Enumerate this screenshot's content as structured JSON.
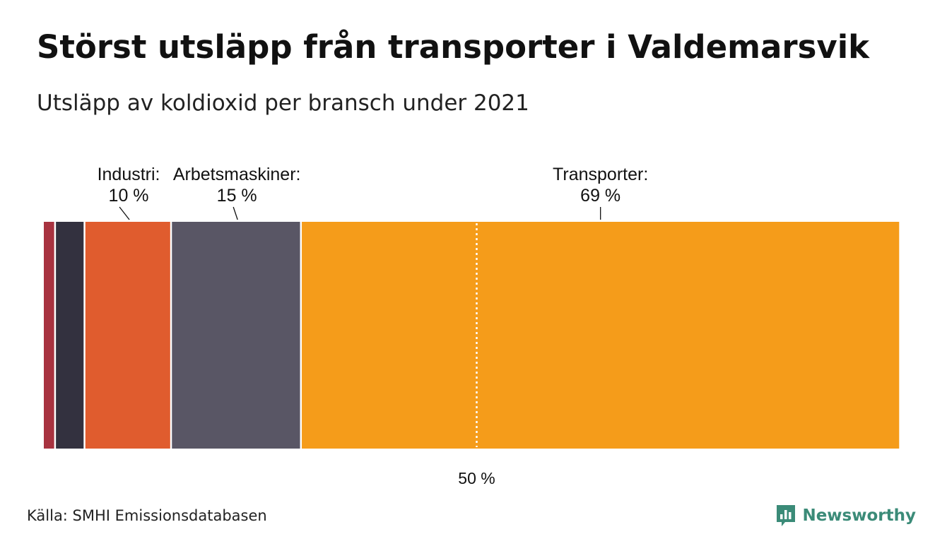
{
  "header": {
    "title": "Störst utsläpp från transporter i Valdemarsvik",
    "subtitle": "Utsläpp av koldioxid per bransch under 2021"
  },
  "footer": {
    "source": "Källa: SMHI Emissionsdatabasen",
    "brand": "Newsworthy"
  },
  "colors": {
    "segment_1": "#a83340",
    "segment_2": "#33313f",
    "industri": "#e05c2e",
    "arbetsmaskiner": "#595665",
    "transporter": "#f59c1a",
    "brand": "#3b8b78"
  },
  "chart_data": {
    "type": "stacked-bar-100",
    "unit": "%",
    "segments": [
      {
        "name": "",
        "value": 1.4,
        "color": "#a83340",
        "label": null,
        "pct": null
      },
      {
        "name": "",
        "value": 3.4,
        "color": "#33313f",
        "label": null,
        "pct": null
      },
      {
        "name": "Industri",
        "value": 10,
        "color": "#e05c2e",
        "label": "Industri:",
        "pct": "10 %"
      },
      {
        "name": "Arbetsmaskiner",
        "value": 15,
        "color": "#595665",
        "label": "Arbetsmaskiner:",
        "pct": "15 %"
      },
      {
        "name": "Transporter",
        "value": 69,
        "color": "#f59c1a",
        "label": "Transporter:",
        "pct": "69 %"
      }
    ],
    "reference_line": {
      "value": 50,
      "label": "50 %"
    },
    "total": 100
  }
}
